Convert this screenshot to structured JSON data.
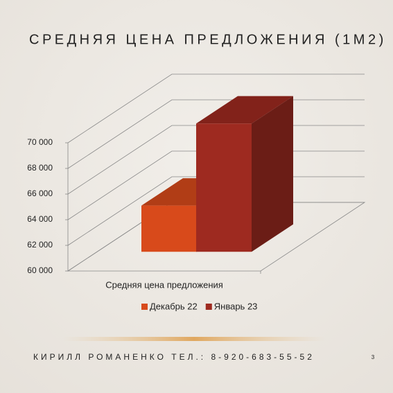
{
  "chart_data": {
    "type": "bar3d",
    "title": "СРЕДНЯЯ ЦЕНА ПРЕДЛОЖЕНИЯ (1М2)",
    "categories": [
      "Средняя цена предложения"
    ],
    "series": [
      {
        "name": "Декабрь 22",
        "color": "#d84a1b",
        "values": [
          63600
        ]
      },
      {
        "name": "Январь 23",
        "color": "#9e2a20",
        "values": [
          70000
        ]
      }
    ],
    "ylim": [
      60000,
      70000
    ],
    "yticks": [
      {
        "value": 60000,
        "label": "60 000"
      },
      {
        "value": 62000,
        "label": "62 000"
      },
      {
        "value": 64000,
        "label": "64 000"
      },
      {
        "value": 66000,
        "label": "66 000"
      },
      {
        "value": 68000,
        "label": "68 000"
      },
      {
        "value": 70000,
        "label": "70 000"
      }
    ],
    "grid": true,
    "legend": "bottom"
  },
  "footer": "КИРИЛЛ РОМАНЕНКО ТЕЛ.: 8-920-683-55-52",
  "page_number": "3"
}
